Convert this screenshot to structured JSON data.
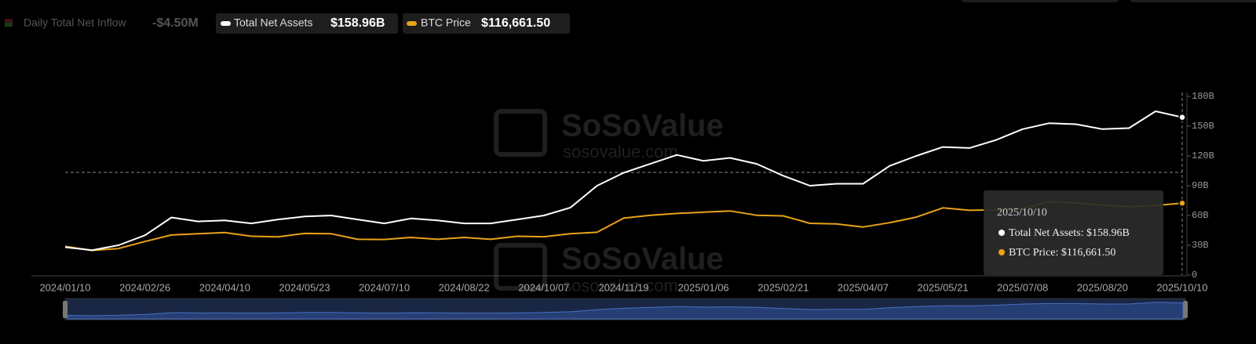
{
  "chart_data": {
    "type": "line",
    "legend": {
      "inactive": {
        "name": "Daily Total Net Inflow",
        "value_label": "-$4.50M"
      }
    },
    "categories": [
      "2024/01/10",
      null,
      null,
      "2024/02/26",
      null,
      null,
      "2024/04/10",
      null,
      null,
      "2024/05/23",
      null,
      null,
      "2024/07/10",
      null,
      null,
      "2024/08/22",
      null,
      null,
      "2024/10/07",
      null,
      null,
      "2024/11/19",
      null,
      null,
      "2025/01/06",
      null,
      null,
      "2025/02/21",
      null,
      null,
      "2025/04/07",
      null,
      null,
      "2025/05/21",
      null,
      null,
      "2025/07/08",
      null,
      null,
      "2025/08/20",
      null,
      null,
      "2025/10/10"
    ],
    "series": [
      {
        "name": "Total Net Assets",
        "color": "#ffffff",
        "value_label": "$158.96B",
        "values": [
          28,
          25,
          30,
          40,
          58,
          54,
          55,
          52,
          56,
          59,
          60,
          56,
          52,
          57,
          55,
          52,
          52,
          56,
          60,
          68,
          90,
          103,
          112,
          121,
          115,
          118,
          112,
          100,
          90,
          92,
          92,
          110,
          120,
          129,
          128,
          136,
          147,
          153,
          152,
          147,
          148,
          165,
          158.96
        ]
      },
      {
        "name": "BTC Price",
        "color": "#e8a317",
        "axis": "y2",
        "value_label": "$116,661.50",
        "values": [
          46600,
          39900,
          43000,
          54500,
          65000,
          67000,
          69000,
          63000,
          62000,
          67500,
          67000,
          58000,
          57800,
          61000,
          58000,
          61000,
          58000,
          63000,
          62200,
          67000,
          69500,
          92300,
          97000,
          100000,
          102000,
          104000,
          97000,
          96000,
          84000,
          83000,
          78000,
          85000,
          94000,
          109000,
          105000,
          106000,
          108000,
          119000,
          117000,
          113500,
          111000,
          113000,
          116661.5
        ]
      }
    ],
    "ylim": [
      0,
      180
    ],
    "yticks": [
      0,
      {
        "value": 30,
        "label": "30B"
      },
      {
        "value": 60,
        "label": "60B"
      },
      {
        "value": 90,
        "label": "90B"
      },
      {
        "value": 120,
        "label": "120B"
      },
      {
        "value": 150,
        "label": "150B"
      },
      {
        "value": 180,
        "label": "180B"
      }
    ],
    "y2lim": [
      0,
      290000
    ],
    "tooltip": {
      "date": "2025/10/10",
      "items": [
        "Total Net Assets: $158.96B",
        "BTC Price: $116,661.50"
      ]
    },
    "watermark": {
      "brand": "SoSoValue",
      "url": "sosovalue.com"
    }
  }
}
